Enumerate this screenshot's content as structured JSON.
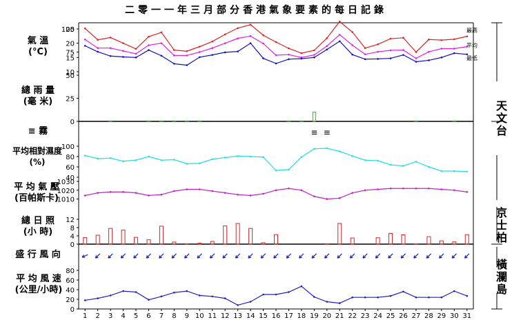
{
  "title": "二零一一年三月部分香港氣象要素的每日記錄",
  "rows": {
    "temp": [
      "氣 溫",
      "(°C)"
    ],
    "rain": [
      "總 雨 量",
      "(毫 米)"
    ],
    "fog": [
      "≡  霧",
      ""
    ],
    "rh": [
      "平均相對濕度",
      "(%)"
    ],
    "press": [
      "平 均 氣 壓",
      "(百帕斯卡)"
    ],
    "sun": [
      "總 日 照",
      "(小 時)"
    ],
    "wdir": [
      "盛 行 風 向",
      ""
    ],
    "wspd": [
      "平 均 風 速",
      "(公里/小時)"
    ]
  },
  "stations": {
    "observatory": "天文台",
    "kingspark": "京士柏",
    "waglan": "橫瀾島"
  },
  "colors": {
    "max": "#e02020",
    "mean": "#e020e0",
    "min": "#1010c0",
    "rain": "#20c020",
    "rh": "#20e0e0",
    "press": "#c020c0",
    "sun": "#e02020",
    "wind": "#2020c0"
  },
  "chart_data": {
    "type": "line",
    "days": [
      1,
      2,
      3,
      4,
      5,
      6,
      7,
      8,
      9,
      10,
      11,
      12,
      13,
      14,
      15,
      16,
      17,
      18,
      19,
      20,
      21,
      22,
      23,
      24,
      25,
      26,
      27,
      28,
      29,
      30,
      31
    ],
    "temperature": {
      "ylim": [
        10,
        25
      ],
      "ticks": [
        10,
        15,
        20,
        25
      ],
      "series": [
        {
          "name": "最高",
          "values": [
            25.2,
            21.2,
            22,
            20,
            18,
            22.3,
            23.8,
            17.6,
            17.2,
            18.8,
            20.6,
            23.1,
            25.3,
            26.5,
            22.8,
            20.4,
            18.2,
            16.5,
            17.5,
            21.8,
            27.6,
            23.9,
            18.3,
            19.6,
            21.6,
            21.9,
            16.9,
            21.3,
            21.1,
            21.4,
            22.4
          ]
        },
        {
          "name": "平均",
          "values": [
            21.3,
            18.3,
            18.3,
            17.3,
            16.3,
            19.3,
            20,
            15.7,
            15.7,
            16.9,
            18.3,
            20,
            21.7,
            22.5,
            19.9,
            15.8,
            16,
            15,
            15.9,
            19,
            23,
            19.3,
            16.1,
            17,
            17.5,
            17.6,
            14.7,
            17,
            18.1,
            18.1,
            18.8
          ]
        },
        {
          "name": "最低",
          "values": [
            19.1,
            17,
            15.5,
            15.2,
            15,
            17.6,
            15.6,
            12.8,
            12.3,
            15.1,
            15.9,
            16.8,
            17.1,
            20,
            14.7,
            12.9,
            14.4,
            14.6,
            15,
            17.8,
            20.7,
            16,
            14.4,
            14.5,
            14.7,
            15.9,
            13.5,
            14,
            15,
            16.5,
            16.1
          ]
        }
      ]
    },
    "rainfall": {
      "ylim": [
        0,
        100
      ],
      "ticks": [
        0,
        25,
        50,
        75,
        100
      ],
      "values": [
        0,
        0,
        0.5,
        0,
        0,
        0.5,
        0.5,
        0.5,
        0.5,
        0.5,
        0,
        0,
        0,
        0,
        0,
        0,
        0.5,
        0.5,
        10,
        0,
        0,
        0,
        0,
        0,
        0,
        0,
        0.5,
        0,
        0,
        0.5,
        0
      ]
    },
    "fog_days": [
      19,
      20
    ],
    "fog_symbol": "≡",
    "humidity": {
      "ylim": [
        40,
        100
      ],
      "ticks": [
        40,
        60,
        80,
        100
      ],
      "values": [
        82,
        76,
        77,
        71,
        73,
        80,
        73,
        74,
        66,
        67,
        75,
        78,
        81,
        80,
        79,
        53,
        55,
        79,
        95,
        96,
        90,
        81,
        73,
        72,
        64,
        62,
        70,
        60,
        52,
        52,
        51
      ]
    },
    "pressure": {
      "ylim": [
        1005,
        1030
      ],
      "ticks": [
        1010,
        1020,
        1030
      ],
      "values": [
        1014,
        1017,
        1018,
        1018,
        1017,
        1014,
        1015,
        1019,
        1021,
        1021,
        1019,
        1017,
        1015,
        1014,
        1016,
        1020,
        1022,
        1020,
        1013,
        1010,
        1011,
        1017,
        1020,
        1021,
        1022,
        1022,
        1022,
        1022,
        1021,
        1020,
        1018
      ]
    },
    "sunshine": {
      "ylim": [
        0,
        12
      ],
      "ticks": [
        0,
        4,
        8,
        12
      ],
      "values": [
        3.2,
        4.3,
        7.6,
        6.8,
        3.3,
        2.1,
        8.7,
        1,
        0.2,
        0.5,
        1.3,
        8.8,
        10,
        7.6,
        0.7,
        4.6,
        0,
        0,
        0,
        0.2,
        10,
        3,
        0,
        3.1,
        5.2,
        4.5,
        0.1,
        3.6,
        1.6,
        1.1,
        4.6
      ]
    },
    "wind_direction": [
      "ENE",
      "NE",
      "NE",
      "NE",
      "NE",
      "NE",
      "N",
      "NE",
      "NE",
      "NE",
      "NE",
      "NE",
      "N",
      "N",
      "N",
      "N",
      "NE",
      "NE",
      "NE",
      "NE",
      "N",
      "NE",
      "NE",
      "NE",
      "N",
      "N",
      "N",
      "N",
      "N",
      "NE",
      "NE"
    ],
    "wind_speed": {
      "ylim": [
        0,
        80
      ],
      "ticks": [
        0,
        20,
        40,
        60,
        80
      ],
      "values": [
        18,
        22,
        28,
        37,
        35,
        19,
        26,
        34,
        37,
        28,
        26,
        22,
        8,
        15,
        30,
        30,
        35,
        47,
        25,
        15,
        12,
        24,
        24,
        24,
        27,
        36,
        24,
        24,
        24,
        37,
        27
      ]
    }
  }
}
